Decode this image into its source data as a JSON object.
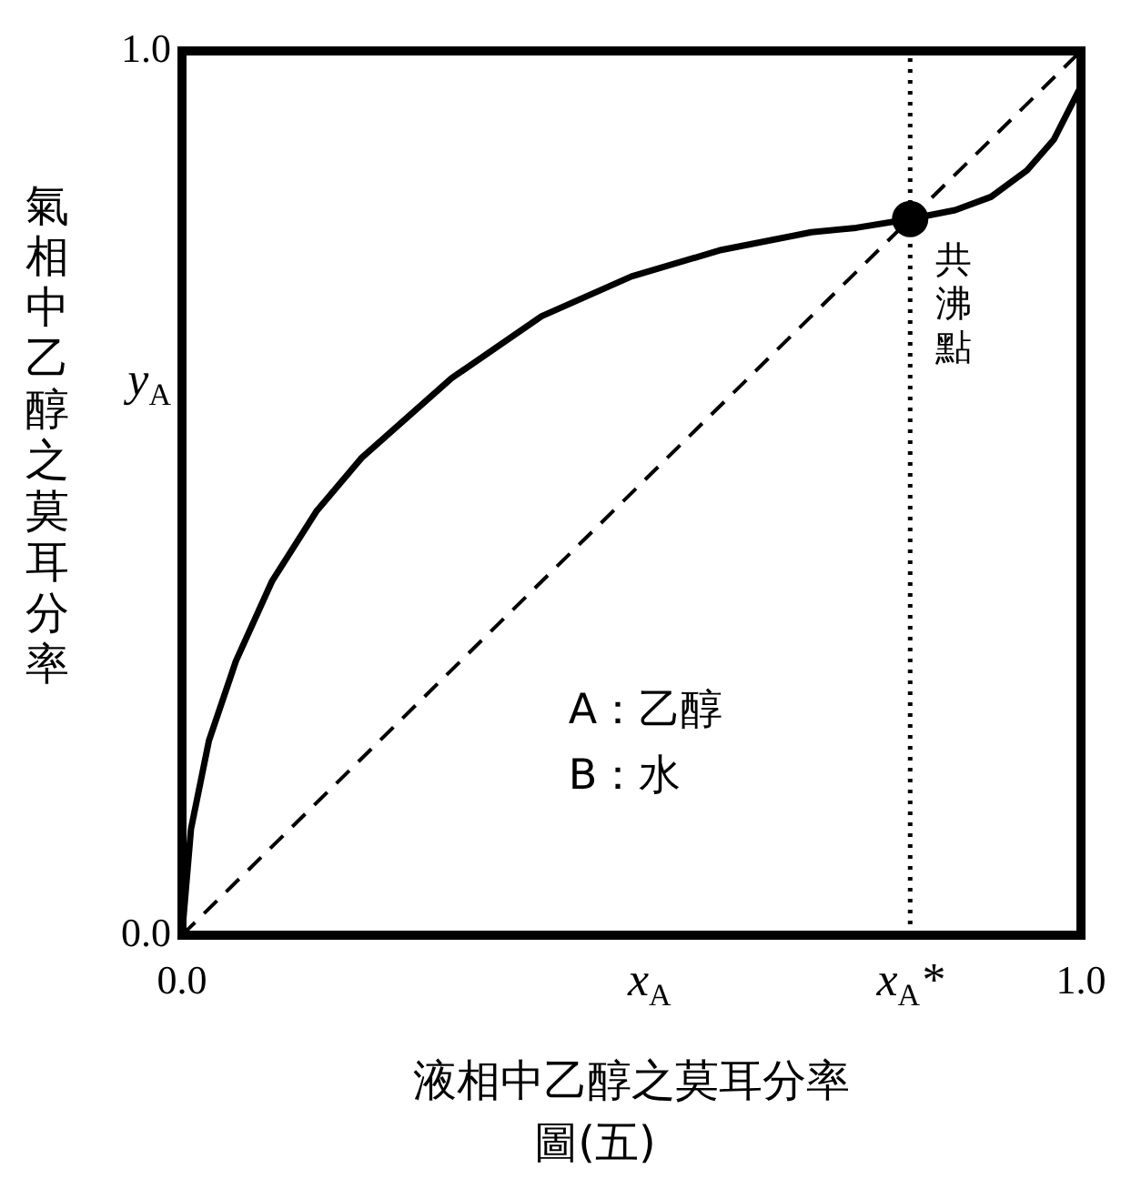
{
  "chart_data": {
    "type": "line",
    "xlabel": "液相中乙醇之莫耳分率",
    "ylabel": "氣相中乙醇之莫耳分率",
    "xlim": [
      0,
      1
    ],
    "ylim": [
      0,
      1
    ],
    "xticks": [
      {
        "value": 0,
        "label": "0.0"
      },
      {
        "value": 0.52,
        "label": "x$_{A}$"
      },
      {
        "value": 0.81,
        "label": "x$_{A}$*"
      },
      {
        "value": 1,
        "label": "1.0"
      }
    ],
    "yticks": [
      {
        "value": 0,
        "label": "0.0"
      },
      {
        "value": 0.625,
        "label": "y$_{A}$"
      },
      {
        "value": 1,
        "label": "1.0"
      }
    ],
    "grid": false,
    "legend": false,
    "marker": "none",
    "series": [
      {
        "color": "#000000",
        "x": [
          0,
          0.01,
          0.03,
          0.06,
          0.1,
          0.15,
          0.2,
          0.3,
          0.4,
          0.5,
          0.6,
          0.7,
          0.75,
          0.81,
          0.86,
          0.9,
          0.94,
          0.97,
          1.0
        ],
        "values": [
          0,
          0.12,
          0.22,
          0.31,
          0.4,
          0.48,
          0.54,
          0.63,
          0.7,
          0.745,
          0.775,
          0.795,
          0.8,
          0.81,
          0.82,
          0.835,
          0.865,
          0.9,
          0.96
        ]
      },
      {
        "type": "line",
        "line_style": "dashed",
        "color": "#000000",
        "x": [
          0,
          1
        ],
        "values": [
          0,
          1
        ]
      },
      {
        "type": "scatter",
        "marker": "circle",
        "color": "#000000",
        "x": [
          0.81
        ],
        "values": [
          0.81
        ]
      }
    ],
    "ref_lines": [
      {
        "axis": "x",
        "value": 0.81,
        "line_style": "dotted",
        "color": "#000000"
      }
    ],
    "annotations": [
      {
        "text": "共沸點",
        "x": 0.81,
        "y": 0.81
      },
      "A：乙醇",
      "B：水",
      "圖(五)"
    ]
  }
}
